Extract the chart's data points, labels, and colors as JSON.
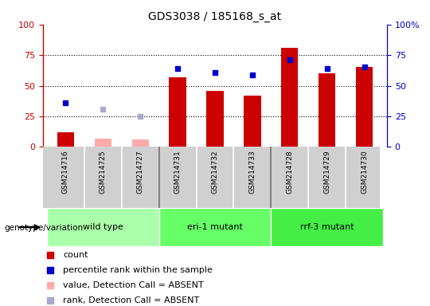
{
  "title": "GDS3038 / 185168_s_at",
  "samples": [
    "GSM214716",
    "GSM214725",
    "GSM214727",
    "GSM214731",
    "GSM214732",
    "GSM214733",
    "GSM214728",
    "GSM214729",
    "GSM214730"
  ],
  "groups": [
    {
      "name": "wild type",
      "indices": [
        0,
        1,
        2
      ],
      "color": "#aaffaa"
    },
    {
      "name": "eri-1 mutant",
      "indices": [
        3,
        4,
        5
      ],
      "color": "#66ff66"
    },
    {
      "name": "rrf-3 mutant",
      "indices": [
        6,
        7,
        8
      ],
      "color": "#44ee44"
    }
  ],
  "count_values": [
    12,
    null,
    null,
    57,
    46,
    42,
    81,
    60,
    65
  ],
  "count_absent": [
    null,
    7,
    6,
    null,
    null,
    null,
    null,
    null,
    null
  ],
  "percentile_values": [
    36,
    null,
    null,
    64,
    61,
    59,
    71,
    64,
    65
  ],
  "percentile_absent": [
    null,
    31,
    25,
    null,
    null,
    null,
    null,
    null,
    null
  ],
  "count_color": "#cc0000",
  "count_absent_color": "#ffaaaa",
  "percentile_color": "#0000cc",
  "percentile_absent_color": "#aaaacc",
  "bar_width": 0.45,
  "ylim": [
    0,
    100
  ],
  "yticks": [
    0,
    25,
    50,
    75,
    100
  ],
  "right_ytick_labels": [
    "0",
    "25",
    "50",
    "75",
    "100%"
  ],
  "left_ytick_labels": [
    "0",
    "25",
    "50",
    "75",
    "100"
  ],
  "sample_bg_color": "#d0d0d0",
  "legend_items": [
    {
      "label": "count",
      "color": "#cc0000"
    },
    {
      "label": "percentile rank within the sample",
      "color": "#0000cc"
    },
    {
      "label": "value, Detection Call = ABSENT",
      "color": "#ffaaaa"
    },
    {
      "label": "rank, Detection Call = ABSENT",
      "color": "#aaaacc"
    }
  ]
}
